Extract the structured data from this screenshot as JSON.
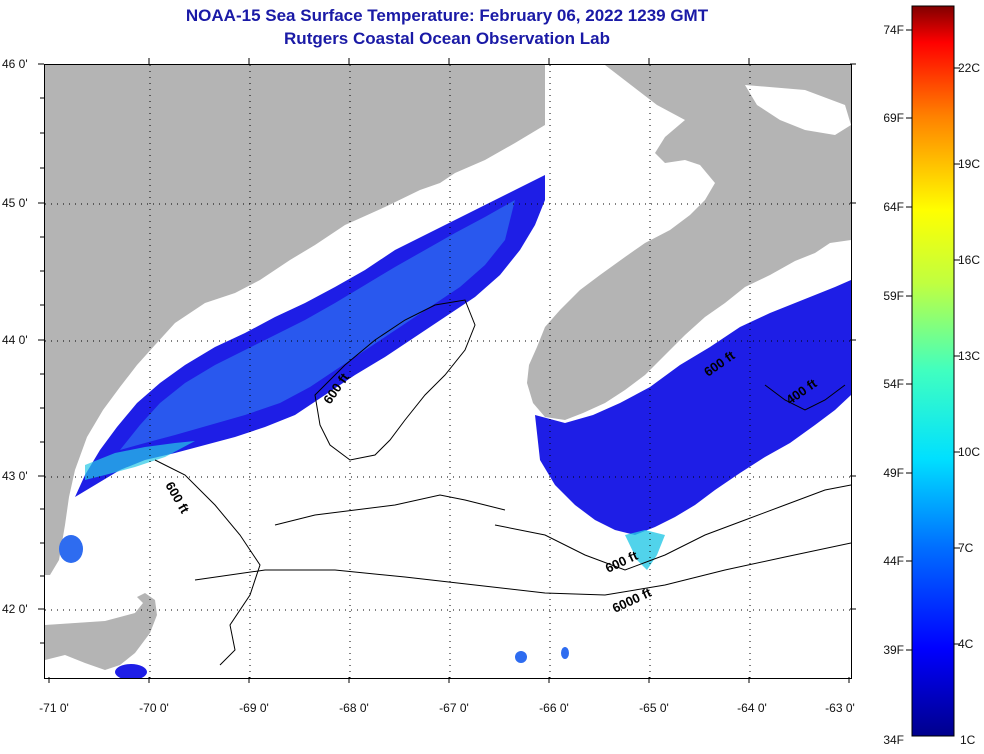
{
  "header": {
    "title_line1": "NOAA-15 Sea Surface Temperature:  February 06, 2022 1239 GMT",
    "title_line2": "Rutgers Coastal Ocean Observation Lab"
  },
  "map": {
    "lat_labels": [
      "46 0'",
      "45 0'",
      "44 0'",
      "43 0'",
      "42 0'"
    ],
    "lon_labels": [
      "-71 0'",
      "-70 0'",
      "-69 0'",
      "-68 0'",
      "-67 0'",
      "-66 0'",
      "-65 0'",
      "-64 0'",
      "-63 0'"
    ],
    "isobath_labels": [
      "600 ft",
      "600 ft",
      "600 ft",
      "600 ft",
      "400 ft",
      "6000 ft"
    ],
    "colors": {
      "land": "#b4b4b4",
      "no_data": "#ffffff",
      "cold_water": "#1e1ee6",
      "mid_water": "#2e6cf0",
      "warm_water": "#26c8e6",
      "contour": "#000000",
      "title": "#1a1aa6"
    }
  },
  "colorbar": {
    "fahrenheit_labels": [
      "74F",
      "69F",
      "64F",
      "59F",
      "54F",
      "49F",
      "44F",
      "39F",
      "34F"
    ],
    "celsius_labels": [
      "22C",
      "19C",
      "16C",
      "13C",
      "10C",
      "7C",
      "4C",
      "1C"
    ]
  }
}
